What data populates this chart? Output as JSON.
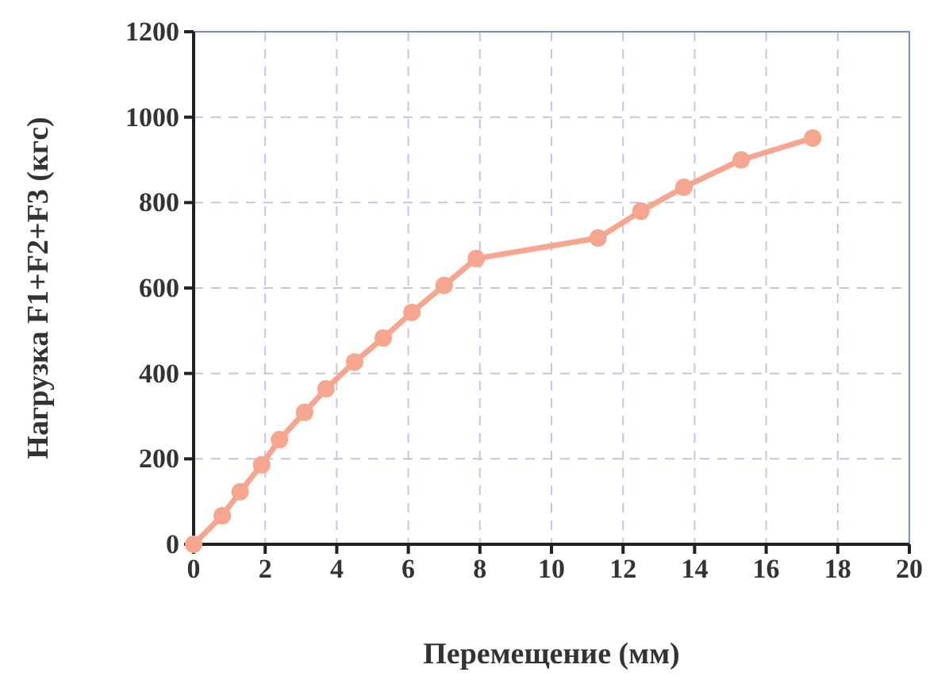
{
  "chart_data": {
    "type": "line",
    "xlabel": "Перемещение (мм)",
    "ylabel": "Нагрузка  F1+F2+F3  (кгс)",
    "series": [
      {
        "color": "#f6a58e",
        "x": [
          0,
          0.8,
          1.3,
          1.9,
          2.4,
          3.1,
          3.7,
          4.5,
          5.3,
          6.1,
          7.0,
          7.9,
          11.3,
          12.5,
          13.7,
          15.3,
          17.3
        ],
        "values": [
          0,
          67,
          123,
          186,
          245,
          309,
          364,
          427,
          483,
          543,
          606,
          669,
          717,
          780,
          836,
          900,
          951
        ]
      }
    ],
    "xlim": [
      0,
      20
    ],
    "xticks": [
      0,
      2,
      4,
      6,
      8,
      10,
      12,
      14,
      16,
      18,
      20
    ],
    "ylim": [
      0,
      1200
    ],
    "yticks": [
      0,
      200,
      400,
      600,
      800,
      1000,
      1200
    ],
    "grid": true,
    "marker": "circle",
    "line_style": "solid"
  }
}
